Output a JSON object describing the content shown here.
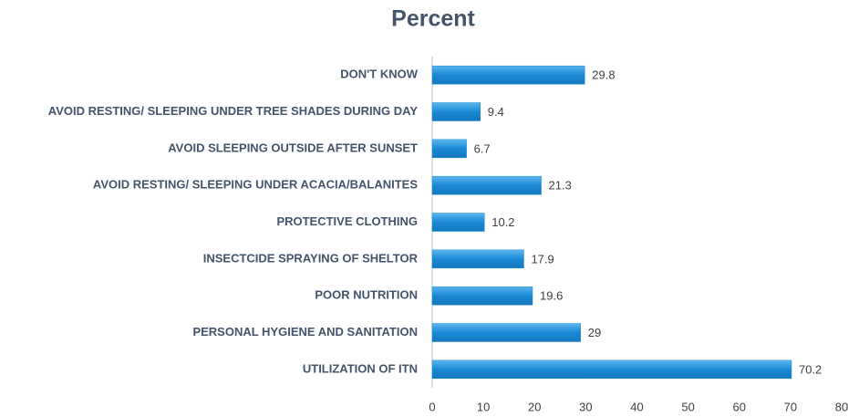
{
  "chart_data": {
    "type": "bar",
    "orientation": "horizontal",
    "title": "Percent",
    "categories": [
      "DON'T KNOW",
      "AVOID RESTING/ SLEEPING UNDER TREE SHADES DURING DAY",
      "AVOID SLEEPING OUTSIDE AFTER SUNSET",
      "AVOID RESTING/ SLEEPING UNDER ACACIA/BALANITES",
      "PROTECTIVE CLOTHING",
      "INSECTCIDE SPRAYING OF SHELTOR",
      "POOR NUTRITION",
      "PERSONAL HYGIENE AND SANITATION",
      "UTILIZATION OF ITN"
    ],
    "values": [
      29.8,
      9.4,
      6.7,
      21.3,
      10.2,
      17.9,
      19.6,
      29,
      70.2
    ],
    "color": "#1a8ad4",
    "xlim": [
      0,
      80
    ],
    "xticks": [
      0,
      10,
      20,
      30,
      40,
      50,
      60,
      70,
      80
    ]
  }
}
